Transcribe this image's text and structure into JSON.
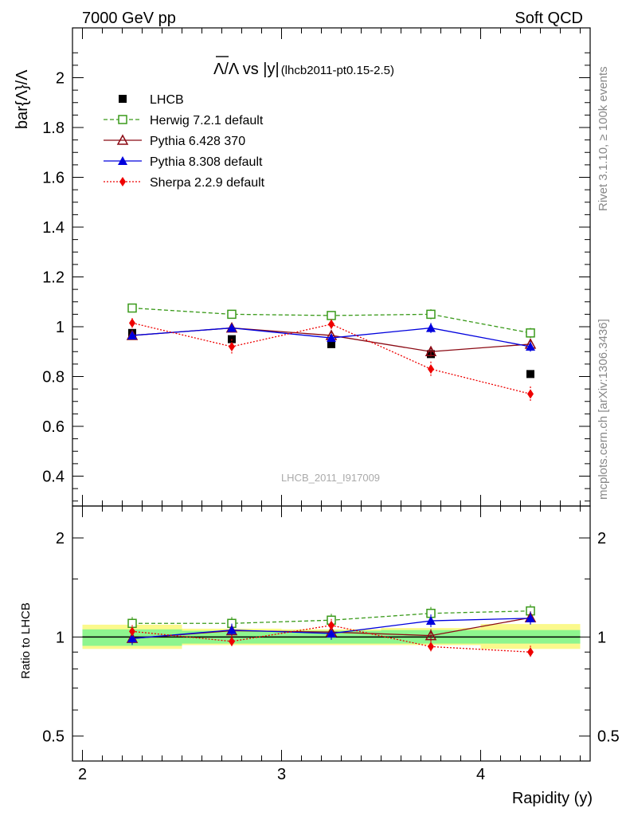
{
  "header": {
    "left": "7000 GeV pp",
    "right": "Soft QCD"
  },
  "side_labels": {
    "rivet": "Rivet 3.1.10, ≥ 100k events",
    "mcplots": "mcplots.cern.ch [arXiv:1306.3436]"
  },
  "watermark": "LHCB_2011_I917009",
  "colors": {
    "data": "#000000",
    "herwig": "#3a9a1a",
    "pythia6": "#8b0a14",
    "pythia8": "#0000dd",
    "sherpa": "#ee0000",
    "band_inner": "#8ef58e",
    "band_outer": "#fbf98c"
  },
  "chart_data": [
    {
      "type": "scatter",
      "panel": "main",
      "title": "Λ̅/Λ vs |y|",
      "title_parts": {
        "main": "Λ/Λ vs |y|",
        "sub": "(lhcb2011-pt0.15-2.5)"
      },
      "ylabel": "bar{Λ}/Λ",
      "ylim": [
        0.28,
        2.2
      ],
      "xlim": [
        1.95,
        4.55
      ],
      "yticks": [
        0.4,
        0.6,
        0.8,
        1,
        1.2,
        1.4,
        1.6,
        1.8,
        2
      ],
      "ytick_labels": [
        "0.4",
        "0.6",
        "0.8",
        "1",
        "1.2",
        "1.4",
        "1.6",
        "1.8",
        "2"
      ],
      "grid": false,
      "legend_position": "top-left",
      "x": [
        2.25,
        2.75,
        3.25,
        3.75,
        4.25
      ],
      "series": [
        {
          "name": "LHCB",
          "key": "data",
          "marker": "square-filled",
          "line": "none",
          "values": [
            0.975,
            0.95,
            0.93,
            0.89,
            0.81
          ],
          "errors": [
            0.01,
            0.01,
            0.01,
            0.01,
            0.01
          ]
        },
        {
          "name": "Herwig 7.2.1 default",
          "key": "herwig",
          "marker": "square-open",
          "line": "dashed",
          "values": [
            1.075,
            1.05,
            1.045,
            1.05,
            0.975
          ],
          "errors": [
            0.012,
            0.012,
            0.015,
            0.02,
            0.02
          ]
        },
        {
          "name": "Pythia 6.428 370",
          "key": "pythia6",
          "marker": "triangle-open",
          "line": "solid",
          "values": [
            0.965,
            0.995,
            0.965,
            0.9,
            0.93
          ],
          "errors": [
            0.015,
            0.015,
            0.015,
            0.02,
            0.02
          ]
        },
        {
          "name": "Pythia 8.308 default",
          "key": "pythia8",
          "marker": "triangle-filled",
          "line": "solid",
          "values": [
            0.965,
            0.995,
            0.955,
            0.995,
            0.92
          ],
          "errors": [
            0.015,
            0.015,
            0.015,
            0.02,
            0.02
          ]
        },
        {
          "name": "Sherpa 2.2.9 default",
          "key": "sherpa",
          "marker": "diamond-filled",
          "line": "dotted",
          "values": [
            1.015,
            0.92,
            1.01,
            0.83,
            0.73
          ],
          "errors": [
            0.02,
            0.03,
            0.02,
            0.03,
            0.03
          ]
        }
      ]
    },
    {
      "type": "scatter",
      "panel": "ratio",
      "ylabel": "Ratio to LHCB",
      "xlabel": "Rapidity (y)",
      "ylim": [
        0.42,
        2.5
      ],
      "log_y": true,
      "xlim": [
        1.95,
        4.55
      ],
      "yticks": [
        0.5,
        1,
        2
      ],
      "ytick_labels": [
        "0.5",
        "1",
        "2"
      ],
      "xticks": [
        2,
        3,
        4
      ],
      "xtick_labels": [
        "2",
        "3",
        "4"
      ],
      "x": [
        2.25,
        2.75,
        3.25,
        3.75,
        4.25
      ],
      "bands": {
        "edges": [
          2.0,
          2.5,
          3.0,
          3.5,
          4.0,
          4.5
        ],
        "inner_low": [
          0.94,
          0.955,
          0.955,
          0.955,
          0.955
        ],
        "inner_high": [
          1.055,
          1.045,
          1.045,
          1.05,
          1.05
        ],
        "outer_low": [
          0.92,
          0.945,
          0.945,
          0.945,
          0.92
        ],
        "outer_high": [
          1.09,
          1.06,
          1.055,
          1.065,
          1.095
        ]
      },
      "series": [
        {
          "name": "Herwig 7.2.1 default",
          "key": "herwig",
          "marker": "square-open",
          "line": "dashed",
          "values": [
            1.1,
            1.1,
            1.125,
            1.18,
            1.2
          ]
        },
        {
          "name": "Pythia 6.428 370",
          "key": "pythia6",
          "marker": "triangle-open",
          "line": "solid",
          "values": [
            0.99,
            1.045,
            1.035,
            1.01,
            1.145
          ]
        },
        {
          "name": "Pythia 8.308 default",
          "key": "pythia8",
          "marker": "triangle-filled",
          "line": "solid",
          "values": [
            0.99,
            1.05,
            1.025,
            1.12,
            1.14
          ]
        },
        {
          "name": "Sherpa 2.2.9 default",
          "key": "sherpa",
          "marker": "diamond-filled",
          "line": "dotted",
          "values": [
            1.04,
            0.97,
            1.085,
            0.935,
            0.9
          ]
        }
      ]
    }
  ]
}
